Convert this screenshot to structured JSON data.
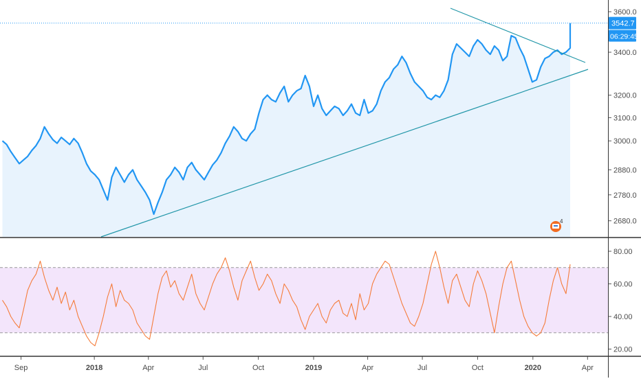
{
  "colors": {
    "price_line": "#2196f3",
    "price_area": "#e8f3fd",
    "trendline": "#2196a8",
    "rsi_line": "#f57c3a",
    "rsi_band": "#f3e5fb",
    "last_price_tag": "#2196f3",
    "axis_text": "#4a4a4a"
  },
  "icons": {
    "event_marker": "earnings-event-icon"
  },
  "event_marker_label": "4",
  "chart_data": [
    {
      "type": "line",
      "name": "price",
      "yscale": "log",
      "ylim": [
        2620,
        3660
      ],
      "y_ticks": [
        "3600.0",
        "3400.0",
        "3200.0",
        "3100.0",
        "3000.0",
        "2880.0",
        "2780.0",
        "2680.0"
      ],
      "y_tick_values": [
        3600,
        3400,
        3200,
        3100,
        3000,
        2880,
        2780,
        2680
      ],
      "x_ticks": [
        "Sep",
        "2018",
        "Apr",
        "Jul",
        "Oct",
        "2019",
        "Apr",
        "Jul",
        "Oct",
        "2020",
        "Apr"
      ],
      "x_tick_dates": [
        "2017-09-01",
        "2018-01-01",
        "2018-04-01",
        "2018-07-01",
        "2018-10-01",
        "2019-01-01",
        "2019-04-01",
        "2019-07-01",
        "2019-10-01",
        "2020-01-01",
        "2020-04-01"
      ],
      "last_price": 3542.7,
      "last_price_label": "3542.7",
      "countdown_label": "06:29:45",
      "series": [
        {
          "x": [
            "2017-08-01",
            "2017-08-08",
            "2017-08-15",
            "2017-08-22",
            "2017-08-29",
            "2017-09-05",
            "2017-09-12",
            "2017-09-19",
            "2017-09-26",
            "2017-10-03",
            "2017-10-10",
            "2017-10-17",
            "2017-10-24",
            "2017-10-31",
            "2017-11-07",
            "2017-11-14",
            "2017-11-21",
            "2017-11-28",
            "2017-12-05",
            "2017-12-12",
            "2017-12-19",
            "2017-12-26",
            "2018-01-02",
            "2018-01-09",
            "2018-01-16",
            "2018-01-23",
            "2018-01-30",
            "2018-02-06",
            "2018-02-13",
            "2018-02-20",
            "2018-02-27",
            "2018-03-06",
            "2018-03-13",
            "2018-03-20",
            "2018-03-27",
            "2018-04-03",
            "2018-04-10",
            "2018-04-17",
            "2018-04-24",
            "2018-05-01",
            "2018-05-08",
            "2018-05-15",
            "2018-05-22",
            "2018-05-29",
            "2018-06-05",
            "2018-06-12",
            "2018-06-19",
            "2018-06-26",
            "2018-07-03",
            "2018-07-10",
            "2018-07-17",
            "2018-07-24",
            "2018-07-31",
            "2018-08-07",
            "2018-08-14",
            "2018-08-21",
            "2018-08-28",
            "2018-09-04",
            "2018-09-11",
            "2018-09-18",
            "2018-09-25",
            "2018-10-02",
            "2018-10-09",
            "2018-10-16",
            "2018-10-23",
            "2018-10-30",
            "2018-11-06",
            "2018-11-13",
            "2018-11-20",
            "2018-11-27",
            "2018-12-04",
            "2018-12-11",
            "2018-12-18",
            "2018-12-25",
            "2019-01-01",
            "2019-01-08",
            "2019-01-15",
            "2019-01-22",
            "2019-01-29",
            "2019-02-05",
            "2019-02-12",
            "2019-02-19",
            "2019-02-26",
            "2019-03-05",
            "2019-03-12",
            "2019-03-19",
            "2019-03-26",
            "2019-04-02",
            "2019-04-09",
            "2019-04-16",
            "2019-04-23",
            "2019-04-30",
            "2019-05-07",
            "2019-05-14",
            "2019-05-21",
            "2019-05-28",
            "2019-06-04",
            "2019-06-11",
            "2019-06-18",
            "2019-06-25",
            "2019-07-02",
            "2019-07-09",
            "2019-07-16",
            "2019-07-23",
            "2019-07-30",
            "2019-08-06",
            "2019-08-13",
            "2019-08-20",
            "2019-08-27",
            "2019-09-03",
            "2019-09-10",
            "2019-09-17",
            "2019-09-24",
            "2019-10-01",
            "2019-10-08",
            "2019-10-15",
            "2019-10-22",
            "2019-10-29",
            "2019-11-05",
            "2019-11-12",
            "2019-11-19",
            "2019-11-26",
            "2019-12-03",
            "2019-12-10",
            "2019-12-17",
            "2019-12-24",
            "2019-12-31",
            "2020-01-07",
            "2020-01-14",
            "2020-01-21",
            "2020-01-28",
            "2020-02-04",
            "2020-02-11",
            "2020-02-18",
            "2020-02-25",
            "2020-03-03"
          ],
          "values": [
            3000,
            2985,
            2955,
            2930,
            2905,
            2920,
            2935,
            2960,
            2980,
            3010,
            3060,
            3030,
            3005,
            2990,
            3015,
            3000,
            2985,
            3010,
            2990,
            2950,
            2905,
            2875,
            2860,
            2840,
            2800,
            2760,
            2850,
            2890,
            2860,
            2830,
            2860,
            2880,
            2840,
            2815,
            2790,
            2760,
            2705,
            2750,
            2790,
            2840,
            2860,
            2890,
            2870,
            2840,
            2890,
            2910,
            2880,
            2860,
            2840,
            2870,
            2900,
            2920,
            2950,
            2990,
            3020,
            3060,
            3040,
            3010,
            3000,
            3030,
            3050,
            3120,
            3180,
            3200,
            3180,
            3170,
            3210,
            3240,
            3170,
            3200,
            3220,
            3230,
            3290,
            3240,
            3150,
            3200,
            3140,
            3110,
            3130,
            3150,
            3140,
            3110,
            3130,
            3160,
            3120,
            3110,
            3180,
            3120,
            3130,
            3160,
            3220,
            3260,
            3280,
            3320,
            3340,
            3380,
            3350,
            3300,
            3260,
            3240,
            3220,
            3190,
            3180,
            3200,
            3190,
            3220,
            3270,
            3390,
            3440,
            3420,
            3400,
            3380,
            3430,
            3460,
            3440,
            3410,
            3390,
            3430,
            3410,
            3360,
            3380,
            3480,
            3470,
            3420,
            3380,
            3320,
            3260,
            3270,
            3330,
            3370,
            3380,
            3400,
            3410,
            3390,
            3400,
            3420
          ]
        }
      ]
    },
    {
      "type": "line",
      "name": "rsi",
      "ylim": [
        16,
        88
      ],
      "y_ticks": [
        "80.00",
        "60.00",
        "40.00",
        "20.00"
      ],
      "y_tick_values": [
        80,
        60,
        40,
        20
      ],
      "bands": [
        70,
        30
      ],
      "series": [
        {
          "x": [
            "2017-08-01",
            "2017-08-08",
            "2017-08-15",
            "2017-08-22",
            "2017-08-29",
            "2017-09-05",
            "2017-09-12",
            "2017-09-19",
            "2017-09-26",
            "2017-10-03",
            "2017-10-10",
            "2017-10-17",
            "2017-10-24",
            "2017-10-31",
            "2017-11-07",
            "2017-11-14",
            "2017-11-21",
            "2017-11-28",
            "2017-12-05",
            "2017-12-12",
            "2017-12-19",
            "2017-12-26",
            "2018-01-02",
            "2018-01-09",
            "2018-01-16",
            "2018-01-23",
            "2018-01-30",
            "2018-02-06",
            "2018-02-13",
            "2018-02-20",
            "2018-02-27",
            "2018-03-06",
            "2018-03-13",
            "2018-03-20",
            "2018-03-27",
            "2018-04-03",
            "2018-04-10",
            "2018-04-17",
            "2018-04-24",
            "2018-05-01",
            "2018-05-08",
            "2018-05-15",
            "2018-05-22",
            "2018-05-29",
            "2018-06-05",
            "2018-06-12",
            "2018-06-19",
            "2018-06-26",
            "2018-07-03",
            "2018-07-10",
            "2018-07-17",
            "2018-07-24",
            "2018-07-31",
            "2018-08-07",
            "2018-08-14",
            "2018-08-21",
            "2018-08-28",
            "2018-09-04",
            "2018-09-11",
            "2018-09-18",
            "2018-09-25",
            "2018-10-02",
            "2018-10-09",
            "2018-10-16",
            "2018-10-23",
            "2018-10-30",
            "2018-11-06",
            "2018-11-13",
            "2018-11-20",
            "2018-11-27",
            "2018-12-04",
            "2018-12-11",
            "2018-12-18",
            "2018-12-25",
            "2019-01-01",
            "2019-01-08",
            "2019-01-15",
            "2019-01-22",
            "2019-01-29",
            "2019-02-05",
            "2019-02-12",
            "2019-02-19",
            "2019-02-26",
            "2019-03-05",
            "2019-03-12",
            "2019-03-19",
            "2019-03-26",
            "2019-04-02",
            "2019-04-09",
            "2019-04-16",
            "2019-04-23",
            "2019-04-30",
            "2019-05-07",
            "2019-05-14",
            "2019-05-21",
            "2019-05-28",
            "2019-06-04",
            "2019-06-11",
            "2019-06-18",
            "2019-06-25",
            "2019-07-02",
            "2019-07-09",
            "2019-07-16",
            "2019-07-23",
            "2019-07-30",
            "2019-08-06",
            "2019-08-13",
            "2019-08-20",
            "2019-08-27",
            "2019-09-03",
            "2019-09-10",
            "2019-09-17",
            "2019-09-24",
            "2019-10-01",
            "2019-10-08",
            "2019-10-15",
            "2019-10-22",
            "2019-10-29",
            "2019-11-05",
            "2019-11-12",
            "2019-11-19",
            "2019-11-26",
            "2019-12-03",
            "2019-12-10",
            "2019-12-17",
            "2019-12-24",
            "2019-12-31",
            "2020-01-07",
            "2020-01-14",
            "2020-01-21",
            "2020-01-28",
            "2020-02-04",
            "2020-02-11",
            "2020-02-18",
            "2020-02-25",
            "2020-03-03"
          ],
          "values": [
            50,
            46,
            40,
            36,
            33,
            44,
            56,
            62,
            66,
            74,
            64,
            56,
            50,
            58,
            48,
            55,
            44,
            50,
            40,
            34,
            28,
            24,
            22,
            30,
            40,
            52,
            60,
            46,
            56,
            50,
            48,
            44,
            36,
            32,
            28,
            26,
            40,
            54,
            64,
            68,
            58,
            62,
            54,
            50,
            58,
            66,
            54,
            48,
            44,
            52,
            60,
            66,
            70,
            76,
            68,
            58,
            50,
            62,
            68,
            74,
            64,
            56,
            60,
            66,
            62,
            54,
            48,
            60,
            56,
            50,
            46,
            38,
            32,
            40,
            44,
            48,
            40,
            36,
            44,
            48,
            50,
            42,
            40,
            48,
            38,
            54,
            44,
            48,
            60,
            66,
            70,
            74,
            72,
            64,
            56,
            48,
            42,
            36,
            34,
            40,
            48,
            60,
            72,
            80,
            70,
            58,
            48,
            62,
            66,
            58,
            50,
            46,
            60,
            68,
            62,
            54,
            42,
            30,
            46,
            60,
            70,
            74,
            62,
            50,
            40,
            34,
            30,
            28,
            30,
            36,
            50,
            62,
            70,
            60,
            54,
            72
          ]
        }
      ]
    }
  ]
}
